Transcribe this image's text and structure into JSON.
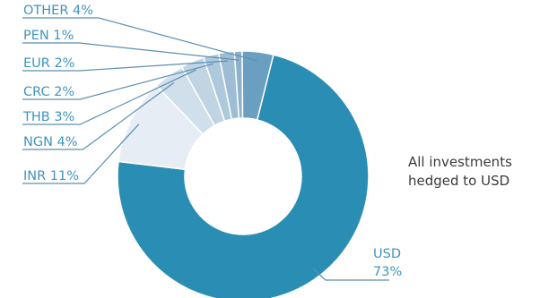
{
  "chart_data": {
    "type": "pie",
    "variant": "donut",
    "title": "",
    "slices": [
      {
        "name": "USD",
        "value": 73,
        "label": "73%",
        "color": "#2a8db3"
      },
      {
        "name": "INR",
        "value": 11,
        "label": "11%",
        "color": "#e6edf5"
      },
      {
        "name": "NGN",
        "value": 4,
        "label": "4%",
        "color": "#d0dfea"
      },
      {
        "name": "THB",
        "value": 3,
        "label": "3%",
        "color": "#c0d4e3"
      },
      {
        "name": "CRC",
        "value": 2,
        "label": "2%",
        "color": "#afc9dc"
      },
      {
        "name": "EUR",
        "value": 2,
        "label": "2%",
        "color": "#9ebdd4"
      },
      {
        "name": "PEN",
        "value": 1,
        "label": "1%",
        "color": "#8db1cc"
      },
      {
        "name": "OTHER",
        "value": 4,
        "label": "4%",
        "color": "#6a9fc1"
      }
    ],
    "label_color": "#3f95bd",
    "leader_color": "#5b8fb0"
  },
  "note": {
    "line1": "All investments",
    "line2": "hedged to USD"
  }
}
